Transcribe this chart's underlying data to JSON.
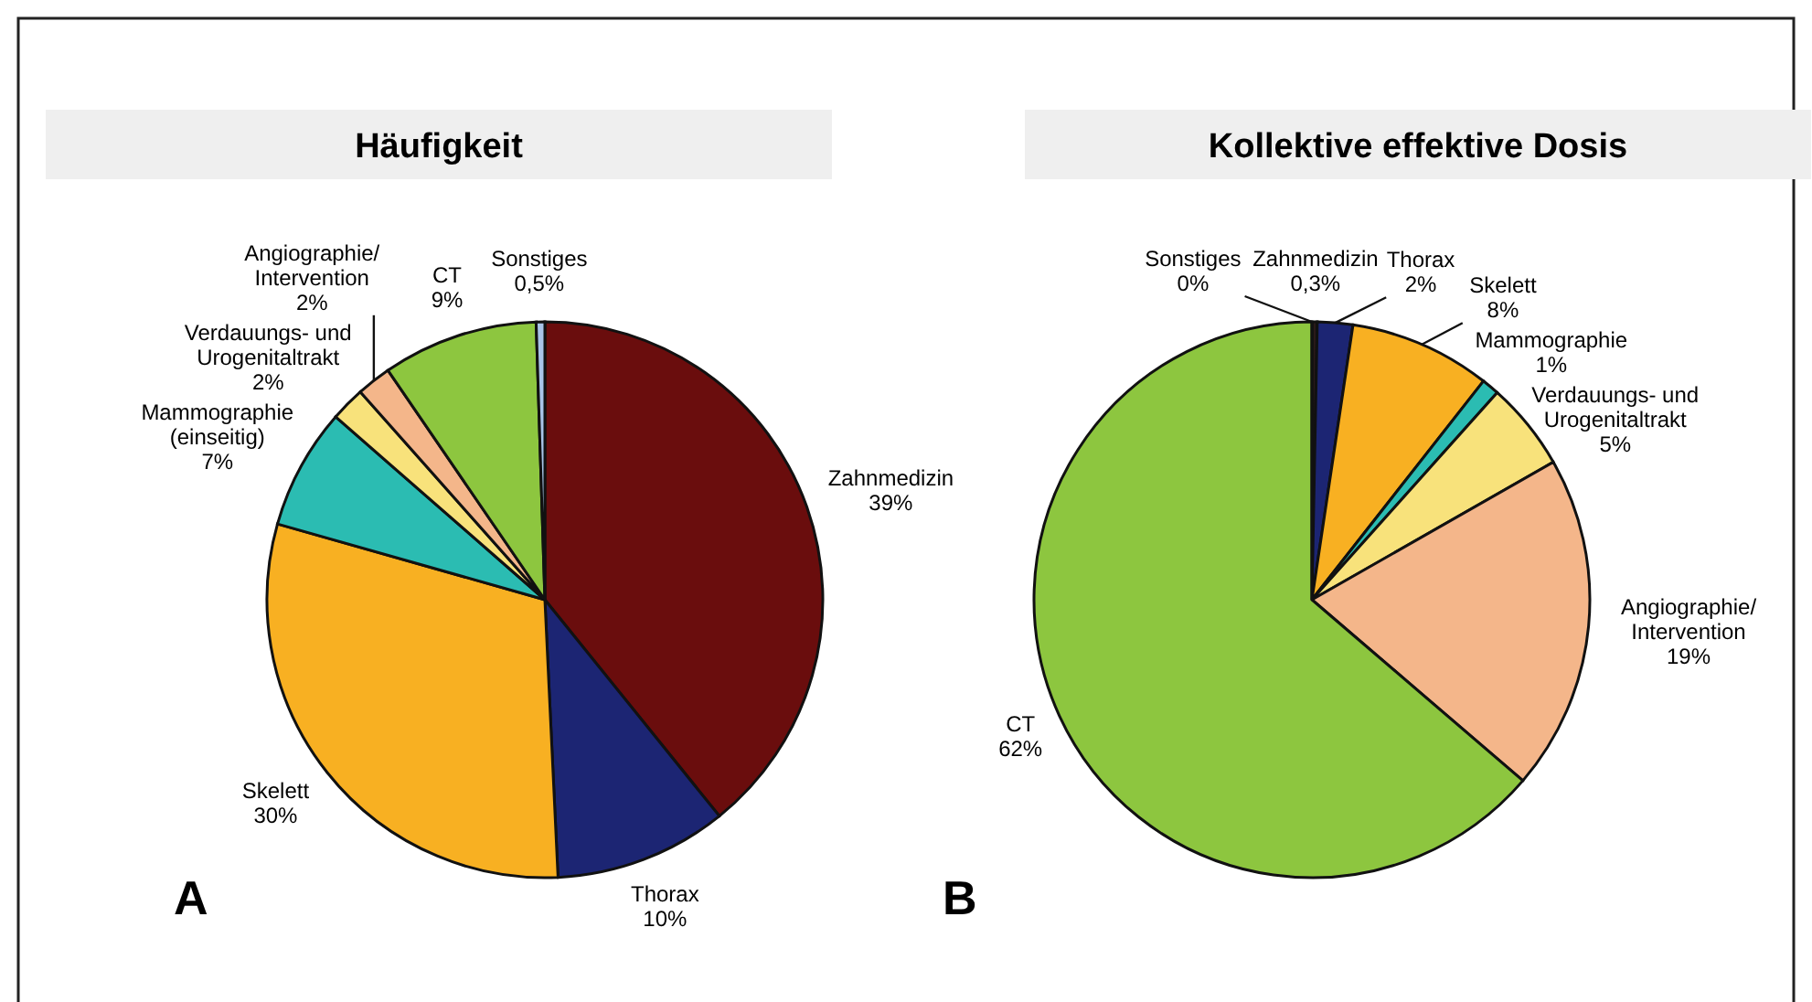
{
  "chart_data": [
    {
      "type": "pie",
      "title": "Häufigkeit",
      "categories": [
        "Zahnmedizin",
        "Thorax",
        "Skelett",
        "Mammographie\n(einseitig)",
        "Verdauungs- und\nUrogenitaltrakt",
        "Angiographie/\nIntervention",
        "CT",
        "Sonstiges"
      ],
      "values": [
        39,
        10,
        30,
        7,
        2,
        2,
        9,
        0.5
      ],
      "value_labels": [
        "39%",
        "10%",
        "30%",
        "7%",
        "2%",
        "2%",
        "9%",
        "0,5%"
      ],
      "colors": [
        "#6a0d0d",
        "#1c2573",
        "#f8b022",
        "#2bbcb2",
        "#f8e27b",
        "#f4b68a",
        "#8dc63f",
        "#a9c4e8"
      ],
      "annotations": [
        "A"
      ]
    },
    {
      "type": "pie",
      "title": "Kollektive effektive Dosis",
      "categories": [
        "Zahnmedizin",
        "Thorax",
        "Skelett",
        "Mammographie",
        "Verdauungs- und\nUrogenitaltrakt",
        "Angiographie/\nIntervention",
        "CT",
        "Sonstiges"
      ],
      "values": [
        0.3,
        2,
        8,
        1,
        5,
        19,
        62,
        0
      ],
      "value_labels": [
        "0,3%",
        "2%",
        "8%",
        "1%",
        "5%",
        "19%",
        "62%",
        "0%"
      ],
      "colors": [
        "#2a1a1a",
        "#1c2573",
        "#f8b022",
        "#2bbcb2",
        "#f8e27b",
        "#f4b68a",
        "#8dc63f",
        "#a9c4e8"
      ],
      "annotations": [
        "B"
      ]
    }
  ]
}
